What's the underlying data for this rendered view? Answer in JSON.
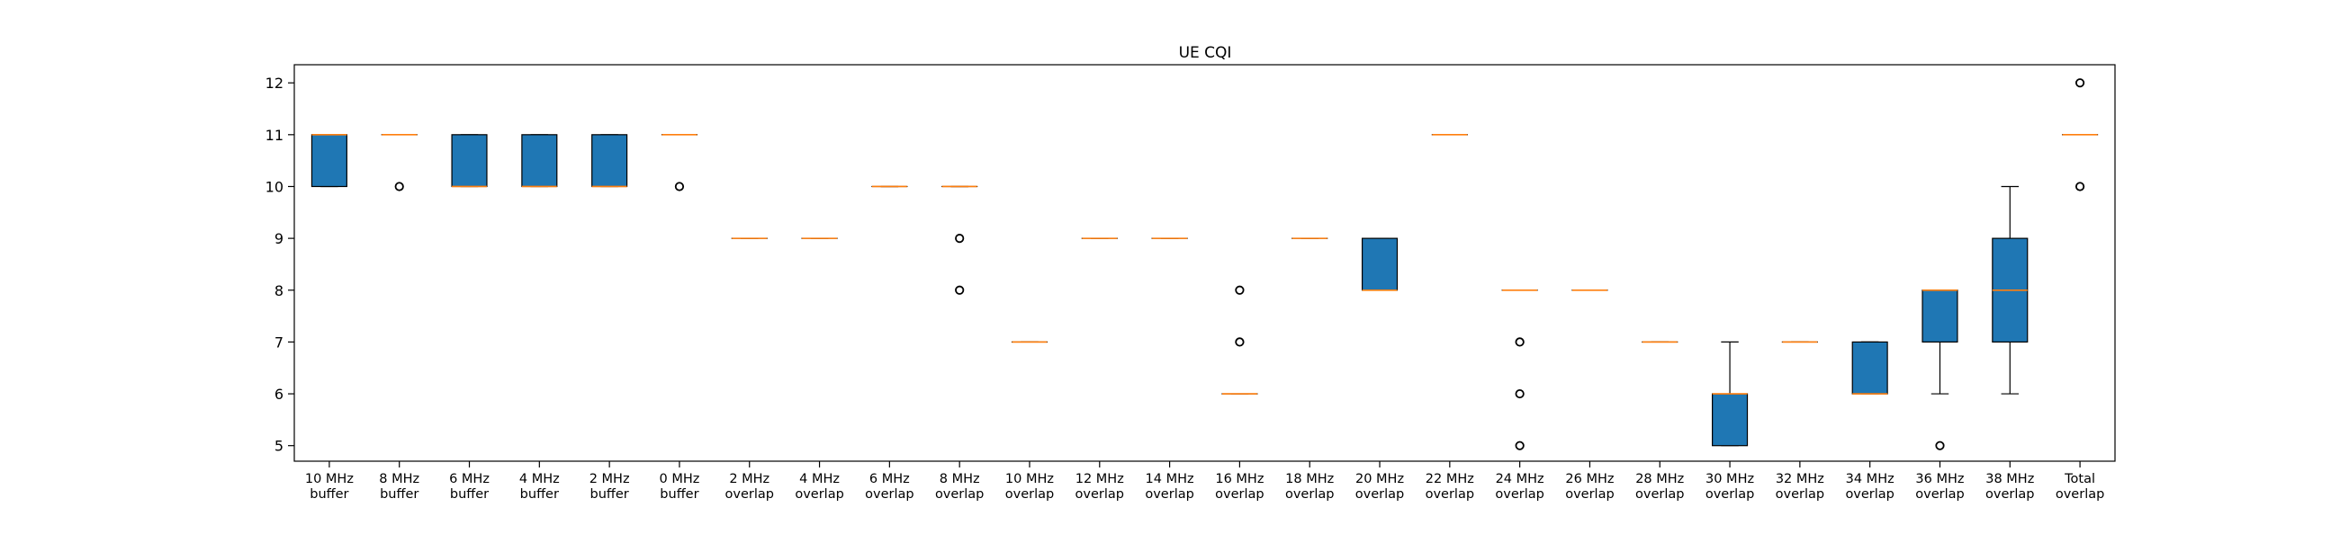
{
  "chart_data": {
    "type": "box",
    "title": "UE CQI",
    "xlabel": "",
    "ylabel": "",
    "ylim": [
      4.7,
      12.35
    ],
    "yticks": [
      5,
      6,
      7,
      8,
      9,
      10,
      11,
      12
    ],
    "grid": false,
    "legend": "none",
    "colors": {
      "box_fill": "#1f77b4",
      "median": "#ff7f0e",
      "outline": "#000000"
    },
    "categories": [
      [
        "10 MHz",
        "buffer"
      ],
      [
        "8 MHz",
        "buffer"
      ],
      [
        "6 MHz",
        "buffer"
      ],
      [
        "4 MHz",
        "buffer"
      ],
      [
        "2 MHz",
        "buffer"
      ],
      [
        "0 MHz",
        "buffer"
      ],
      [
        "2 MHz",
        "overlap"
      ],
      [
        "4 MHz",
        "overlap"
      ],
      [
        "6 MHz",
        "overlap"
      ],
      [
        "8 MHz",
        "overlap"
      ],
      [
        "10 MHz",
        "overlap"
      ],
      [
        "12 MHz",
        "overlap"
      ],
      [
        "14 MHz",
        "overlap"
      ],
      [
        "16 MHz",
        "overlap"
      ],
      [
        "18 MHz",
        "overlap"
      ],
      [
        "20 MHz",
        "overlap"
      ],
      [
        "22 MHz",
        "overlap"
      ],
      [
        "24 MHz",
        "overlap"
      ],
      [
        "26 MHz",
        "overlap"
      ],
      [
        "28 MHz",
        "overlap"
      ],
      [
        "30 MHz",
        "overlap"
      ],
      [
        "32 MHz",
        "overlap"
      ],
      [
        "34 MHz",
        "overlap"
      ],
      [
        "36 MHz",
        "overlap"
      ],
      [
        "38 MHz",
        "overlap"
      ],
      [
        "Total",
        "overlap"
      ]
    ],
    "boxes": [
      {
        "whislo": 10,
        "q1": 10,
        "med": 11,
        "q3": 11,
        "whishi": 11,
        "fliers": []
      },
      {
        "whislo": 11,
        "q1": 11,
        "med": 11,
        "q3": 11,
        "whishi": 11,
        "fliers": [
          10
        ]
      },
      {
        "whislo": 10,
        "q1": 10,
        "med": 10,
        "q3": 11,
        "whishi": 11,
        "fliers": []
      },
      {
        "whislo": 10,
        "q1": 10,
        "med": 10,
        "q3": 11,
        "whishi": 11,
        "fliers": []
      },
      {
        "whislo": 10,
        "q1": 10,
        "med": 10,
        "q3": 11,
        "whishi": 11,
        "fliers": []
      },
      {
        "whislo": 11,
        "q1": 11,
        "med": 11,
        "q3": 11,
        "whishi": 11,
        "fliers": [
          10
        ]
      },
      {
        "whislo": 9,
        "q1": 9,
        "med": 9,
        "q3": 9,
        "whishi": 9,
        "fliers": []
      },
      {
        "whislo": 9,
        "q1": 9,
        "med": 9,
        "q3": 9,
        "whishi": 9,
        "fliers": []
      },
      {
        "whislo": 10,
        "q1": 10,
        "med": 10,
        "q3": 10,
        "whishi": 10,
        "fliers": []
      },
      {
        "whislo": 10,
        "q1": 10,
        "med": 10,
        "q3": 10,
        "whishi": 10,
        "fliers": [
          9,
          8
        ]
      },
      {
        "whislo": 7,
        "q1": 7,
        "med": 7,
        "q3": 7,
        "whishi": 7,
        "fliers": []
      },
      {
        "whislo": 9,
        "q1": 9,
        "med": 9,
        "q3": 9,
        "whishi": 9,
        "fliers": []
      },
      {
        "whislo": 9,
        "q1": 9,
        "med": 9,
        "q3": 9,
        "whishi": 9,
        "fliers": []
      },
      {
        "whislo": 6,
        "q1": 6,
        "med": 6,
        "q3": 6,
        "whishi": 6,
        "fliers": [
          8,
          7
        ]
      },
      {
        "whislo": 9,
        "q1": 9,
        "med": 9,
        "q3": 9,
        "whishi": 9,
        "fliers": []
      },
      {
        "whislo": 8,
        "q1": 8,
        "med": 8,
        "q3": 9,
        "whishi": 9,
        "fliers": []
      },
      {
        "whislo": 11,
        "q1": 11,
        "med": 11,
        "q3": 11,
        "whishi": 11,
        "fliers": []
      },
      {
        "whislo": 8,
        "q1": 8,
        "med": 8,
        "q3": 8,
        "whishi": 8,
        "fliers": [
          7,
          6,
          5
        ]
      },
      {
        "whislo": 8,
        "q1": 8,
        "med": 8,
        "q3": 8,
        "whishi": 8,
        "fliers": []
      },
      {
        "whislo": 7,
        "q1": 7,
        "med": 7,
        "q3": 7,
        "whishi": 7,
        "fliers": []
      },
      {
        "whislo": 5,
        "q1": 5,
        "med": 6,
        "q3": 6,
        "whishi": 7,
        "fliers": []
      },
      {
        "whislo": 7,
        "q1": 7,
        "med": 7,
        "q3": 7,
        "whishi": 7,
        "fliers": []
      },
      {
        "whislo": 6,
        "q1": 6,
        "med": 6,
        "q3": 7,
        "whishi": 7,
        "fliers": []
      },
      {
        "whislo": 6,
        "q1": 7,
        "med": 8,
        "q3": 8,
        "whishi": 8,
        "fliers": [
          5
        ]
      },
      {
        "whislo": 6,
        "q1": 7,
        "med": 8,
        "q3": 9,
        "whishi": 10,
        "fliers": []
      },
      {
        "whislo": 11,
        "q1": 11,
        "med": 11,
        "q3": 11,
        "whishi": 11,
        "fliers": [
          12,
          10
        ]
      }
    ]
  }
}
